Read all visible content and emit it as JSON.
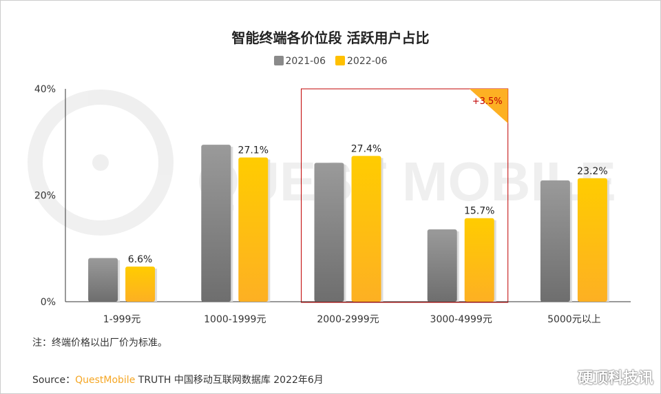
{
  "chart_data": {
    "type": "bar",
    "title": "智能终端各价位段 活跃用户占比",
    "categories": [
      "1-999元",
      "1000-1999元",
      "2000-2999元",
      "3000-4999元",
      "5000元以上"
    ],
    "series": [
      {
        "name": "2021-06",
        "values": [
          8.2,
          29.5,
          26.1,
          13.6,
          22.8
        ],
        "color": "#8a8a8a"
      },
      {
        "name": "2022-06",
        "values": [
          6.6,
          27.1,
          27.4,
          15.7,
          23.2
        ],
        "color": "#ffc000",
        "labels": [
          "6.6%",
          "27.1%",
          "27.4%",
          "15.7%",
          "23.2%"
        ]
      }
    ],
    "ylim": [
      0,
      40
    ],
    "yticks": [
      "0%",
      "20%",
      "40%"
    ],
    "grid": false,
    "legend": "top",
    "highlight": {
      "categories": [
        "2000-2999元",
        "3000-4999元"
      ],
      "label": "+3.5%",
      "color": "#c00000"
    }
  },
  "note": "注：终端价格以出厂价为标准。",
  "source": {
    "prefix": "Source：",
    "brand": "QuestMobile",
    "rest": " TRUTH 中国移动互联网数据库 2022年6月"
  },
  "watermark": "硬顶科技讯",
  "background_watermark": "QUEST MOBILE"
}
